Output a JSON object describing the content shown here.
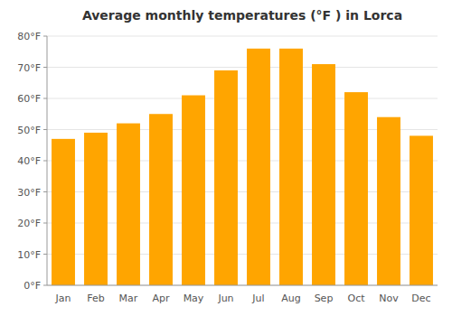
{
  "chart_data": {
    "type": "bar",
    "title": "Average monthly temperatures (°F ) in Lorca",
    "categories": [
      "Jan",
      "Feb",
      "Mar",
      "Apr",
      "May",
      "Jun",
      "Jul",
      "Aug",
      "Sep",
      "Oct",
      "Nov",
      "Dec"
    ],
    "values": [
      47,
      49,
      52,
      55,
      61,
      69,
      76,
      76,
      71,
      62,
      54,
      48
    ],
    "color": "#FFA500",
    "ylim": [
      0,
      80
    ],
    "yticks": [
      {
        "value": 0,
        "label": "0°F"
      },
      {
        "value": 10,
        "label": "10°F"
      },
      {
        "value": 20,
        "label": "20°F"
      },
      {
        "value": 30,
        "label": "30°F"
      },
      {
        "value": 40,
        "label": "40°F"
      },
      {
        "value": 50,
        "label": "50°F"
      },
      {
        "value": 60,
        "label": "60°F"
      },
      {
        "value": 70,
        "label": "70°F"
      },
      {
        "value": 80,
        "label": "80°F"
      }
    ],
    "grid": true
  }
}
